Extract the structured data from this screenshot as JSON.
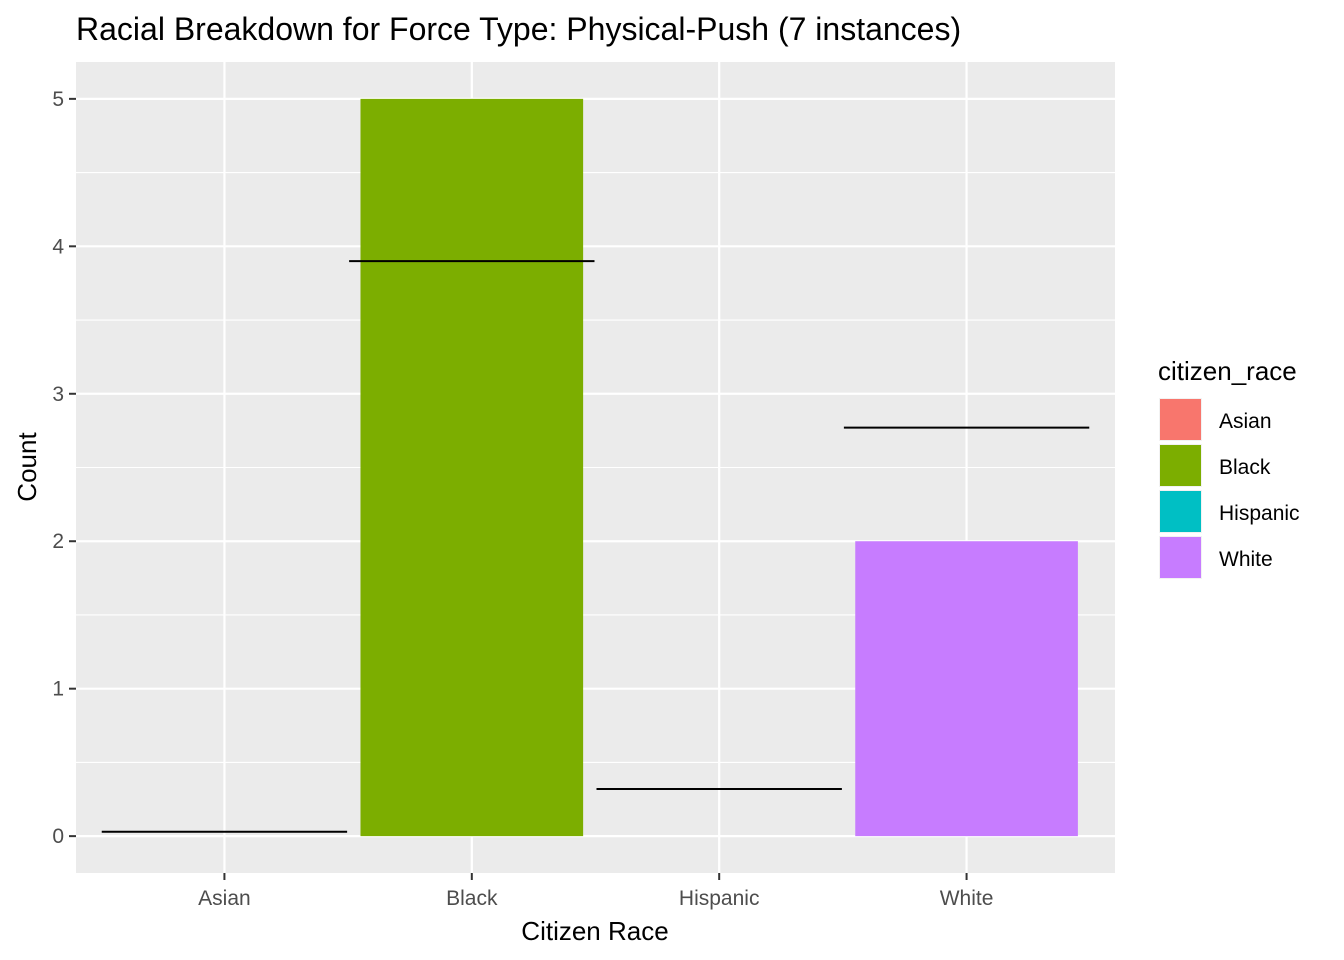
{
  "chart_data": {
    "type": "bar",
    "title": "Racial Breakdown for Force Type: Physical-Push (7 instances)",
    "xlabel": "Citizen Race",
    "ylabel": "Count",
    "categories": [
      "Asian",
      "Black",
      "Hispanic",
      "White"
    ],
    "values": [
      0,
      5,
      0,
      2
    ],
    "reference_lines": [
      0.03,
      3.9,
      0.32,
      2.77
    ],
    "colors": [
      "#F8766D",
      "#7CAE00",
      "#00BFC4",
      "#C77CFF"
    ],
    "ylim": [
      -0.25,
      5.25
    ],
    "yticks": [
      0,
      1,
      2,
      3,
      4,
      5
    ],
    "grid": true,
    "panel_background": "#EBEBEB",
    "legend": {
      "title": "citizen_race",
      "position": "right",
      "entries": [
        "Asian",
        "Black",
        "Hispanic",
        "White"
      ]
    }
  }
}
